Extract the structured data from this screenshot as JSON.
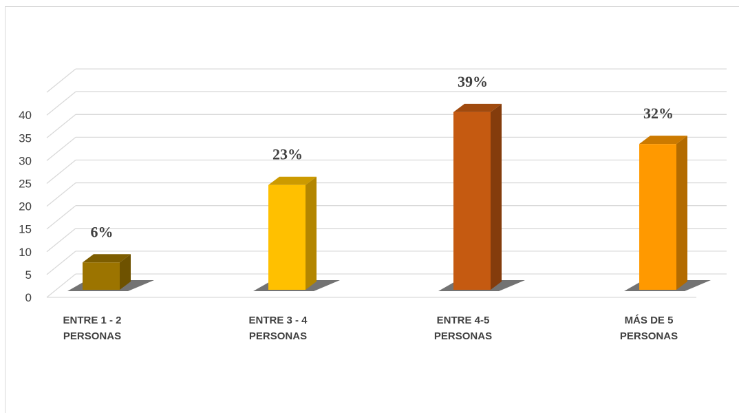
{
  "chart_data": {
    "type": "bar",
    "style": "3d-column",
    "categories": [
      [
        "ENTRE 1 - 2",
        "PERSONAS"
      ],
      [
        "ENTRE 3 - 4",
        "PERSONAS"
      ],
      [
        "ENTRE 4-5",
        "PERSONAS"
      ],
      [
        "MÁS DE 5",
        "PERSONAS"
      ]
    ],
    "values": [
      6,
      23,
      39,
      32
    ],
    "data_labels": [
      "6%",
      "23%",
      "39%",
      "32%"
    ],
    "colors": [
      "#9C7400",
      "#FFC000",
      "#C55A11",
      "#FF9900"
    ],
    "side_colors": [
      "#6E5200",
      "#B38600",
      "#843C0C",
      "#B36B00"
    ],
    "top_colors": [
      "#7D5D00",
      "#CC9A00",
      "#A04A0E",
      "#CC7A00"
    ],
    "yticks": [
      0,
      5,
      10,
      15,
      20,
      25,
      30,
      35,
      40
    ],
    "ylim": [
      0,
      40
    ],
    "grid": true,
    "title": "",
    "xlabel": "",
    "ylabel": ""
  }
}
